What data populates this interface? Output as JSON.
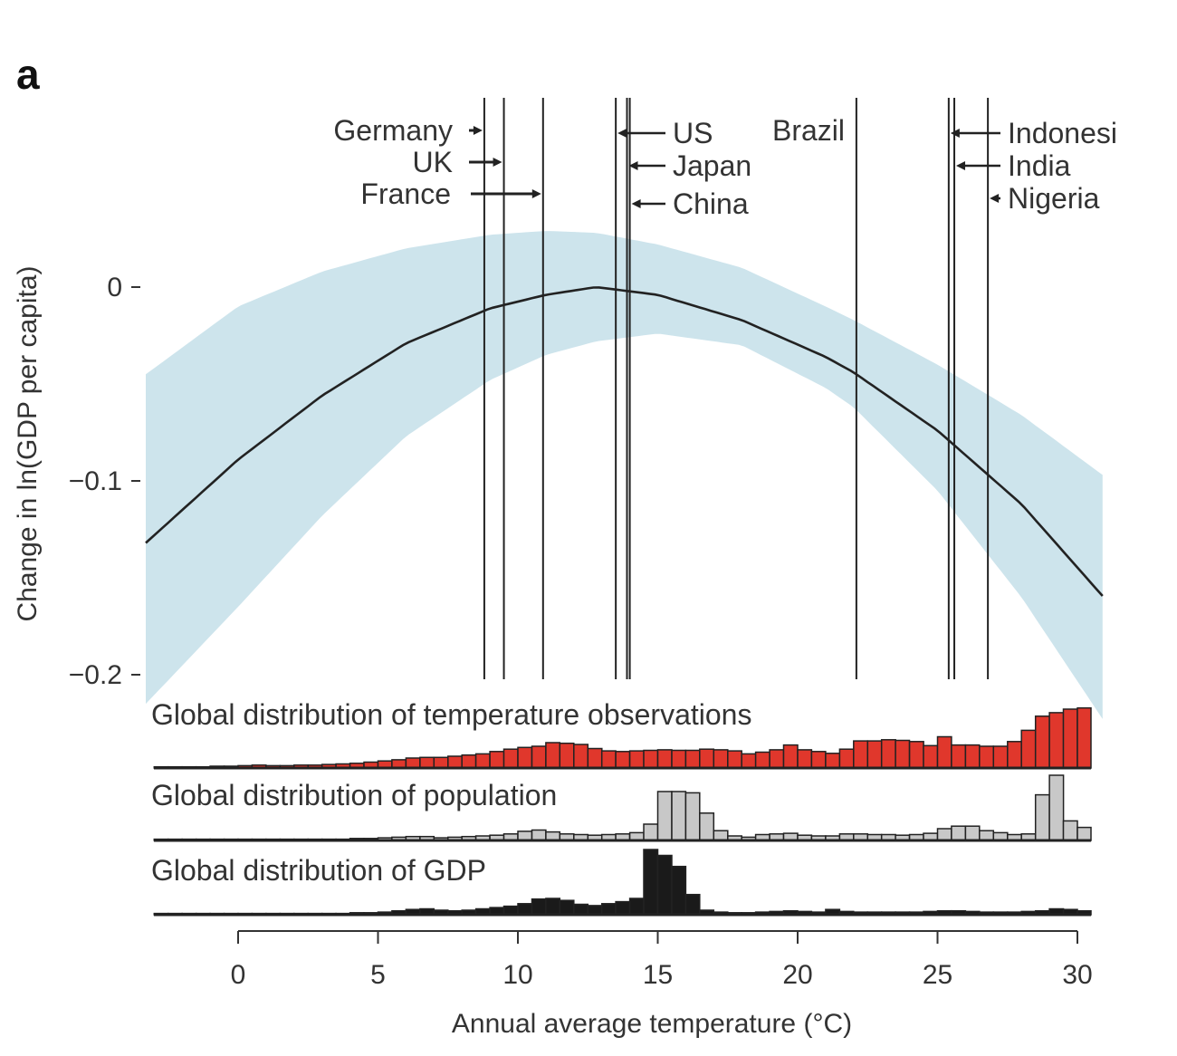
{
  "chart_data": {
    "type": "line",
    "panel_label": "a",
    "xlabel": "Annual average temperature (°C)",
    "ylabel": "Change in ln(GDP per capita)",
    "xlim": [
      -3.3,
      31
    ],
    "ylim": [
      -0.2,
      0.03
    ],
    "xticks": [
      0,
      5,
      10,
      15,
      20,
      25,
      30
    ],
    "xtick_labels": [
      "0",
      "5",
      "10",
      "15",
      "20",
      "25",
      "30"
    ],
    "yticks": [
      0,
      -0.1,
      -0.2
    ],
    "ytick_labels": [
      "0",
      "−0.1",
      "−0.2"
    ],
    "response_curve": {
      "x": [
        -3.3,
        0,
        3,
        6,
        9,
        11,
        12.8,
        15,
        18,
        21,
        22,
        25,
        28,
        31
      ],
      "y": [
        -0.132,
        -0.089,
        -0.056,
        -0.029,
        -0.011,
        -0.004,
        0.0,
        -0.004,
        -0.017,
        -0.036,
        -0.044,
        -0.074,
        -0.112,
        -0.161
      ]
    },
    "confidence_band": {
      "x": [
        -3.3,
        0,
        3,
        6,
        9,
        11,
        12.8,
        15,
        18,
        21,
        22,
        25,
        28,
        31
      ],
      "upper": [
        -0.045,
        -0.01,
        0.008,
        0.02,
        0.027,
        0.029,
        0.028,
        0.022,
        0.01,
        -0.01,
        -0.017,
        -0.04,
        -0.066,
        -0.098
      ],
      "lower": [
        -0.215,
        -0.165,
        -0.118,
        -0.077,
        -0.048,
        -0.035,
        -0.028,
        -0.024,
        -0.03,
        -0.052,
        -0.062,
        -0.105,
        -0.16,
        -0.225
      ]
    },
    "countries": [
      {
        "name": "Germany",
        "temp": 8.8
      },
      {
        "name": "UK",
        "temp": 9.5
      },
      {
        "name": "France",
        "temp": 10.9
      },
      {
        "name": "US",
        "temp": 13.5
      },
      {
        "name": "Japan",
        "temp": 13.9
      },
      {
        "name": "China",
        "temp": 14.0
      },
      {
        "name": "Brazil",
        "temp": 22.1
      },
      {
        "name": "Indonesi",
        "temp": 25.4
      },
      {
        "name": "India",
        "temp": 25.6
      },
      {
        "name": "Nigeria",
        "temp": 26.8
      }
    ],
    "histograms": [
      {
        "name": "Global distribution of temperature observations",
        "color": "#e0372c",
        "bin_start": -3,
        "bin_width": 0.5,
        "values": [
          0.02,
          0.02,
          0.02,
          0.02,
          0.03,
          0.03,
          0.04,
          0.05,
          0.04,
          0.04,
          0.05,
          0.05,
          0.06,
          0.07,
          0.08,
          0.1,
          0.12,
          0.14,
          0.17,
          0.18,
          0.18,
          0.2,
          0.22,
          0.24,
          0.28,
          0.32,
          0.35,
          0.37,
          0.43,
          0.42,
          0.4,
          0.33,
          0.29,
          0.28,
          0.29,
          0.3,
          0.31,
          0.3,
          0.3,
          0.32,
          0.31,
          0.29,
          0.24,
          0.27,
          0.31,
          0.39,
          0.31,
          0.28,
          0.25,
          0.32,
          0.46,
          0.46,
          0.48,
          0.47,
          0.45,
          0.38,
          0.53,
          0.39,
          0.39,
          0.37,
          0.37,
          0.45,
          0.64,
          0.88,
          0.94,
          1.0,
          1.02,
          0.82,
          0.62,
          0.42,
          0.4,
          0.3,
          0.15,
          0.04,
          0.01
        ]
      },
      {
        "name": "Global distribution of population",
        "color": "#c8c8c8",
        "bin_start": -3,
        "bin_width": 0.5,
        "values": [
          0.02,
          0.02,
          0.02,
          0.02,
          0.02,
          0.02,
          0.02,
          0.02,
          0.02,
          0.02,
          0.02,
          0.02,
          0.02,
          0.02,
          0.03,
          0.03,
          0.04,
          0.05,
          0.06,
          0.06,
          0.04,
          0.05,
          0.06,
          0.07,
          0.08,
          0.1,
          0.14,
          0.16,
          0.13,
          0.1,
          0.09,
          0.08,
          0.09,
          0.1,
          0.12,
          0.25,
          0.75,
          0.75,
          0.73,
          0.42,
          0.15,
          0.07,
          0.05,
          0.09,
          0.1,
          0.11,
          0.08,
          0.07,
          0.07,
          0.1,
          0.1,
          0.09,
          0.09,
          0.08,
          0.09,
          0.11,
          0.18,
          0.22,
          0.22,
          0.15,
          0.12,
          0.09,
          0.1,
          0.7,
          1.0,
          0.3,
          0.2,
          0.14,
          0.1,
          0.06,
          0.04,
          0.03,
          0.02,
          0.02,
          0.02
        ]
      },
      {
        "name": "Global distribution of GDP",
        "color": "#1a1a1a",
        "bin_start": -3,
        "bin_width": 0.5,
        "values": [
          0.02,
          0.02,
          0.02,
          0.02,
          0.02,
          0.02,
          0.02,
          0.02,
          0.02,
          0.02,
          0.02,
          0.02,
          0.02,
          0.02,
          0.03,
          0.03,
          0.04,
          0.06,
          0.08,
          0.09,
          0.07,
          0.06,
          0.07,
          0.09,
          0.11,
          0.13,
          0.17,
          0.24,
          0.25,
          0.22,
          0.16,
          0.14,
          0.17,
          0.2,
          0.25,
          1.0,
          0.91,
          0.74,
          0.31,
          0.07,
          0.04,
          0.03,
          0.03,
          0.04,
          0.05,
          0.06,
          0.05,
          0.04,
          0.08,
          0.05,
          0.04,
          0.04,
          0.04,
          0.04,
          0.04,
          0.05,
          0.06,
          0.06,
          0.05,
          0.04,
          0.04,
          0.04,
          0.05,
          0.06,
          0.09,
          0.08,
          0.06,
          0.05,
          0.04,
          0.03,
          0.03,
          0.02,
          0.02,
          0.02,
          0.02
        ]
      }
    ]
  }
}
